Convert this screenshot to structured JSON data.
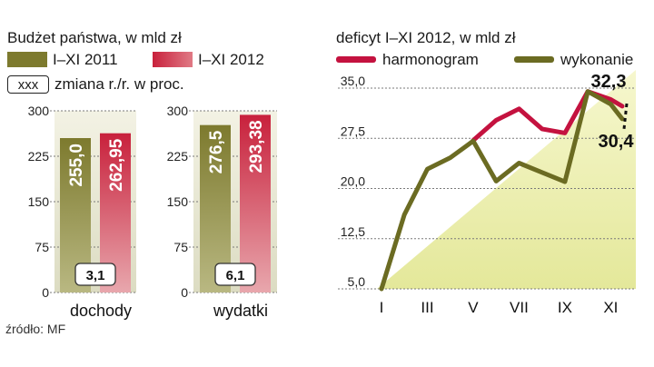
{
  "left_panel": {
    "title": "Budżet państwa, w mld zł",
    "legend": [
      {
        "label": "I–XI 2011",
        "color": "#7d7a2e"
      },
      {
        "label": "I–XI 2012",
        "color": "#c8213c"
      }
    ],
    "change_legend": {
      "box_text": "xxx",
      "label": "zmiana r./r. w proc."
    },
    "source": "źródło: MF"
  },
  "right_panel": {
    "title": "deficyt I–XI 2012, w mld zł",
    "legend": [
      {
        "label": "harmonogram",
        "color": "#c4123f"
      },
      {
        "label": "wykonanie",
        "color": "#6b6b22"
      }
    ]
  },
  "chart_data": [
    {
      "type": "bar",
      "categories": [
        "dochody"
      ],
      "series": [
        {
          "name": "I–XI 2011",
          "values": [
            255.0
          ],
          "value_labels": [
            "255,0"
          ]
        },
        {
          "name": "I–XI 2012",
          "values": [
            262.95
          ],
          "value_labels": [
            "262,95"
          ]
        }
      ],
      "change_label": "3,1",
      "yticks": [
        "0",
        "75",
        "150",
        "225",
        "300"
      ],
      "ylim": [
        0,
        300
      ]
    },
    {
      "type": "bar",
      "categories": [
        "wydatki"
      ],
      "series": [
        {
          "name": "I–XI 2011",
          "values": [
            276.5
          ],
          "value_labels": [
            "276,5"
          ]
        },
        {
          "name": "I–XI 2012",
          "values": [
            293.38
          ],
          "value_labels": [
            "293,38"
          ]
        }
      ],
      "change_label": "6,1",
      "yticks": [
        "0",
        "75",
        "150",
        "225",
        "300"
      ],
      "ylim": [
        0,
        300
      ]
    },
    {
      "type": "line",
      "title": "deficyt I–XI 2012, w mld zł",
      "x": [
        1,
        2,
        3,
        4,
        5,
        6,
        7,
        8,
        9,
        10,
        11,
        11.5
      ],
      "xticks": [
        {
          "value": 1,
          "label": "I"
        },
        {
          "value": 3,
          "label": "III"
        },
        {
          "value": 5,
          "label": "V"
        },
        {
          "value": 7,
          "label": "VII"
        },
        {
          "value": 9,
          "label": "IX"
        },
        {
          "value": 11,
          "label": "XI"
        }
      ],
      "yticks": [
        "5,0",
        "12,5",
        "20,0",
        "27,5",
        "35,0"
      ],
      "ylim": [
        5,
        35
      ],
      "xlim": [
        1,
        11.5
      ],
      "series": [
        {
          "name": "harmonogram",
          "color": "#c4123f",
          "values": [
            null,
            null,
            null,
            null,
            27.2,
            30.2,
            31.9,
            28.9,
            28.3,
            34.5,
            33.3,
            32.3
          ]
        },
        {
          "name": "wykonanie",
          "color": "#6b6b22",
          "values": [
            5.0,
            16.1,
            22.9,
            24.6,
            27.1,
            21.1,
            23.8,
            22.4,
            21.0,
            34.5,
            32.6,
            30.4
          ]
        }
      ],
      "end_labels": [
        "32,3",
        "30,4"
      ]
    }
  ]
}
